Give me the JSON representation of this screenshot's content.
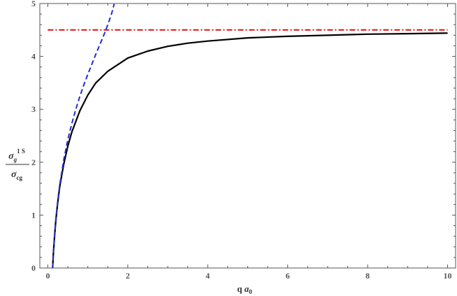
{
  "chart_data": {
    "type": "line",
    "title": "",
    "xlabel": "q a₀",
    "xlabel_parts": {
      "q": "q",
      "a": "a",
      "sub": "0"
    },
    "ylabel": "σ_g^{1S} / σ_cg",
    "ylabel_parts": {
      "num_sym": "σ",
      "num_sub": "g",
      "num_sup": "1 S",
      "den_sym": "σ",
      "den_sub": "cg"
    },
    "xlim": [
      -0.2,
      10.2
    ],
    "ylim": [
      0,
      5
    ],
    "x_ticks": [
      0,
      2,
      4,
      6,
      8,
      10
    ],
    "x_tick_labels": [
      "0",
      "2",
      "4",
      "6",
      "8",
      "10"
    ],
    "y_ticks": [
      0,
      1,
      2,
      3,
      4,
      5
    ],
    "y_tick_labels": [
      "0",
      "1",
      "2",
      "3",
      "4",
      "5"
    ],
    "grid": false,
    "legend": "none",
    "series": [
      {
        "style": "solid",
        "color": "#000000",
        "x": [
          0.12,
          0.14,
          0.17,
          0.2,
          0.25,
          0.3,
          0.4,
          0.5,
          0.6,
          0.8,
          1.0,
          1.2,
          1.5,
          2.0,
          2.5,
          3.0,
          3.5,
          4.0,
          5.0,
          6.0,
          7.0,
          8.0,
          9.0,
          10.0
        ],
        "y": [
          0.0,
          0.3,
          0.62,
          0.9,
          1.25,
          1.55,
          1.97,
          2.3,
          2.57,
          2.97,
          3.27,
          3.5,
          3.72,
          3.97,
          4.1,
          4.19,
          4.25,
          4.29,
          4.35,
          4.38,
          4.4,
          4.42,
          4.43,
          4.44
        ]
      },
      {
        "style": "dashed",
        "color": "#1f2fd0",
        "x": [
          0.12,
          0.14,
          0.17,
          0.2,
          0.25,
          0.3,
          0.4,
          0.5,
          0.6,
          0.7,
          0.8,
          0.9,
          1.0,
          1.1,
          1.2,
          1.3,
          1.4,
          1.5,
          1.6,
          1.66
        ],
        "y": [
          0.0,
          0.3,
          0.63,
          0.92,
          1.28,
          1.58,
          2.05,
          2.42,
          2.73,
          3.0,
          3.24,
          3.46,
          3.66,
          3.85,
          4.04,
          4.22,
          4.4,
          4.6,
          4.82,
          4.99
        ]
      },
      {
        "style": "dash-dot",
        "color": "#e01010",
        "x": [
          0.0,
          10.0
        ],
        "y": [
          4.5,
          4.5
        ]
      }
    ]
  }
}
